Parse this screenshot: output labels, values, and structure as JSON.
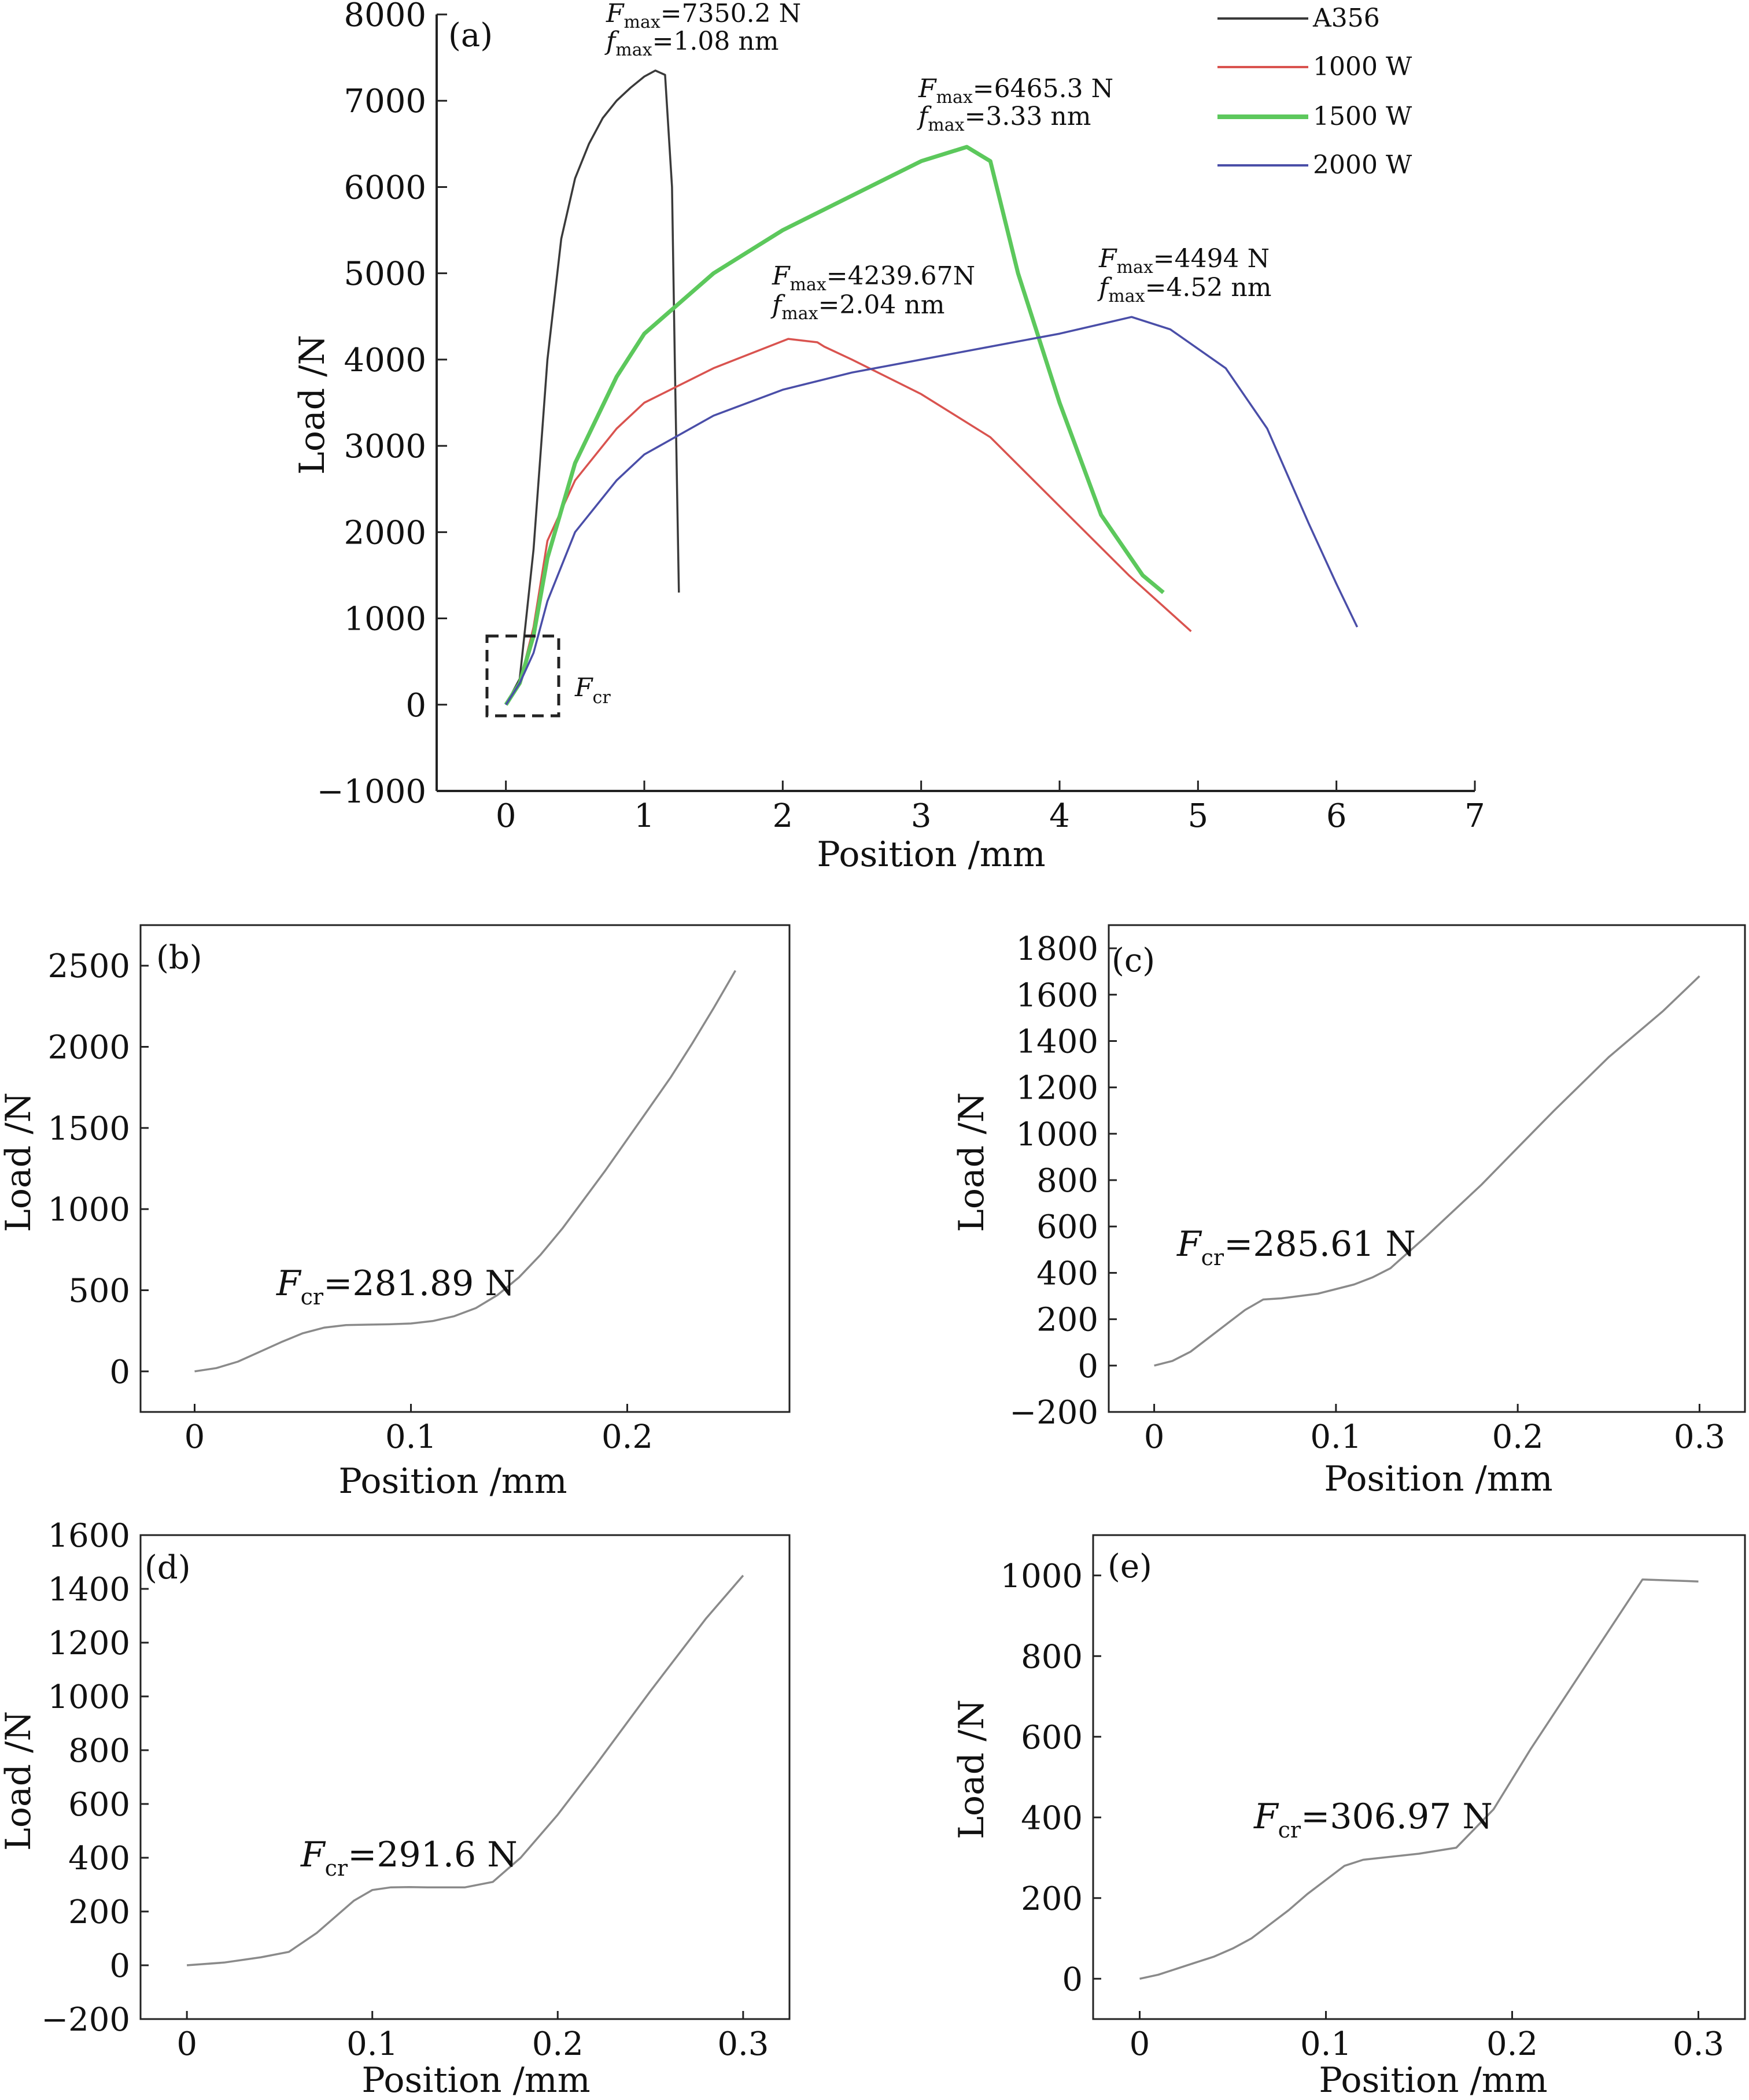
{
  "chart_data": [
    {
      "panel": "(a)",
      "type": "line",
      "xlabel": "Position /mm",
      "ylabel": "Load /N",
      "xlim": [
        -0.5,
        7
      ],
      "ylim": [
        -1000,
        8000
      ],
      "xticks": [
        0,
        1,
        2,
        3,
        4,
        5,
        6,
        7
      ],
      "yticks": [
        -1000,
        0,
        1000,
        2000,
        3000,
        4000,
        5000,
        6000,
        7000,
        8000
      ],
      "tick_labels_x": [
        "0",
        "1",
        "2",
        "3",
        "4",
        "5",
        "6",
        "7"
      ],
      "tick_labels_y": [
        "−1000",
        "0",
        "1000",
        "2000",
        "3000",
        "4000",
        "5000",
        "6000",
        "7000",
        "8000"
      ],
      "legend_position": "top-right",
      "legend": [
        "A356",
        "1000 W",
        "1500 W",
        "2000 W"
      ],
      "series": [
        {
          "name": "A356",
          "color": "#3a3a3a",
          "x": [
            0,
            0.1,
            0.2,
            0.3,
            0.4,
            0.5,
            0.6,
            0.7,
            0.8,
            0.9,
            1.0,
            1.08,
            1.15,
            1.2,
            1.22,
            1.25
          ],
          "y": [
            0,
            300,
            1800,
            4000,
            5400,
            6100,
            6500,
            6800,
            7000,
            7150,
            7280,
            7350,
            7300,
            6000,
            4000,
            1300
          ]
        },
        {
          "name": "1000 W",
          "color": "#d9534f",
          "x": [
            0,
            0.1,
            0.2,
            0.3,
            0.5,
            0.8,
            1.0,
            1.5,
            2.04,
            2.25,
            2.3,
            2.5,
            3.0,
            3.5,
            4.0,
            4.5,
            4.95
          ],
          "y": [
            0,
            250,
            900,
            1900,
            2600,
            3200,
            3500,
            3900,
            4240,
            4200,
            4150,
            4000,
            3600,
            3100,
            2300,
            1500,
            850
          ]
        },
        {
          "name": "1500 W",
          "color": "#5cc85c",
          "x": [
            0,
            0.1,
            0.2,
            0.3,
            0.5,
            0.8,
            1.0,
            1.5,
            2.0,
            2.5,
            3.0,
            3.33,
            3.5,
            3.7,
            4.0,
            4.3,
            4.6,
            4.75
          ],
          "y": [
            0,
            250,
            800,
            1700,
            2800,
            3800,
            4300,
            5000,
            5500,
            5900,
            6300,
            6465,
            6300,
            5000,
            3500,
            2200,
            1500,
            1300
          ]
        },
        {
          "name": "2000 W",
          "color": "#4a4ea8",
          "x": [
            0,
            0.1,
            0.2,
            0.3,
            0.5,
            0.8,
            1.0,
            1.5,
            2.0,
            2.5,
            3.0,
            3.5,
            4.0,
            4.52,
            4.8,
            5.2,
            5.5,
            5.8,
            6.0,
            6.15
          ],
          "y": [
            0,
            250,
            600,
            1200,
            2000,
            2600,
            2900,
            3350,
            3650,
            3850,
            4000,
            4150,
            4300,
            4494,
            4350,
            3900,
            3200,
            2100,
            1400,
            900
          ]
        }
      ],
      "annotations": [
        {
          "text": "=7350.2 N",
          "var": "F",
          "sub": "max"
        },
        {
          "text": "=1.08 nm",
          "var": "f",
          "sub": "max"
        },
        {
          "text": "=6465.3 N",
          "var": "F",
          "sub": "max"
        },
        {
          "text": "=3.33 nm",
          "var": "f",
          "sub": "max"
        },
        {
          "text": "=4239.67N",
          "var": "F",
          "sub": "max"
        },
        {
          "text": "=2.04 nm",
          "var": "f",
          "sub": "max"
        },
        {
          "text": "=4494 N",
          "var": "F",
          "sub": "max"
        },
        {
          "text": "=4.52 nm",
          "var": "f",
          "sub": "max"
        },
        {
          "text": "",
          "var": "F",
          "sub": "cr"
        }
      ]
    },
    {
      "panel": "(b)",
      "type": "line",
      "xlabel": "Position /mm",
      "ylabel": "Load /N",
      "xlim": [
        -0.025,
        0.275
      ],
      "ylim": [
        -250,
        2750
      ],
      "xticks": [
        0,
        0.1,
        0.2
      ],
      "yticks": [
        0,
        500,
        1000,
        1500,
        2000,
        2500
      ],
      "tick_labels_x": [
        "0",
        "0.1",
        "0.2"
      ],
      "tick_labels_y": [
        "0",
        "500",
        "1000",
        "1500",
        "2000",
        "2500"
      ],
      "color": "#8a8a8a",
      "x": [
        0,
        0.01,
        0.02,
        0.03,
        0.04,
        0.05,
        0.06,
        0.07,
        0.08,
        0.09,
        0.1,
        0.11,
        0.12,
        0.13,
        0.14,
        0.15,
        0.16,
        0.17,
        0.18,
        0.19,
        0.2,
        0.21,
        0.22,
        0.23,
        0.24,
        0.25
      ],
      "y": [
        0,
        20,
        60,
        120,
        180,
        235,
        270,
        285,
        288,
        290,
        295,
        310,
        340,
        390,
        470,
        580,
        720,
        880,
        1060,
        1240,
        1430,
        1620,
        1810,
        2020,
        2240,
        2470
      ],
      "annotation": {
        "var": "F",
        "sub": "cr",
        "text": "=281.89 N"
      }
    },
    {
      "panel": "(c)",
      "type": "line",
      "xlabel": "Position /mm",
      "ylabel": "Load /N",
      "xlim": [
        -0.025,
        0.325
      ],
      "ylim": [
        -200,
        1900
      ],
      "xticks": [
        0,
        0.1,
        0.2,
        0.3
      ],
      "yticks": [
        -200,
        0,
        200,
        400,
        600,
        800,
        1000,
        1200,
        1400,
        1600,
        1800
      ],
      "tick_labels_x": [
        "0",
        "0.1",
        "0.2",
        "0.3"
      ],
      "tick_labels_y": [
        "−200",
        "0",
        "200",
        "400",
        "600",
        "800",
        "1000",
        "1200",
        "1400",
        "1600",
        "1800"
      ],
      "color": "#8a8a8a",
      "x": [
        0,
        0.01,
        0.02,
        0.03,
        0.04,
        0.05,
        0.06,
        0.07,
        0.08,
        0.09,
        0.1,
        0.11,
        0.12,
        0.13,
        0.15,
        0.18,
        0.2,
        0.22,
        0.25,
        0.28,
        0.3
      ],
      "y": [
        0,
        20,
        60,
        120,
        180,
        240,
        285,
        290,
        300,
        310,
        330,
        350,
        380,
        420,
        560,
        780,
        940,
        1100,
        1330,
        1530,
        1680
      ],
      "annotation": {
        "var": "F",
        "sub": "cr",
        "text": "=285.61 N"
      }
    },
    {
      "panel": "(d)",
      "type": "line",
      "xlabel": "Position /mm",
      "ylabel": "Load /N",
      "xlim": [
        -0.025,
        0.325
      ],
      "ylim": [
        -200,
        1600
      ],
      "xticks": [
        0,
        0.1,
        0.2,
        0.3
      ],
      "yticks": [
        -200,
        0,
        200,
        400,
        600,
        800,
        1000,
        1200,
        1400,
        1600
      ],
      "tick_labels_x": [
        "0",
        "0.1",
        "0.2",
        "0.3"
      ],
      "tick_labels_y": [
        "−200",
        "0",
        "200",
        "400",
        "600",
        "800",
        "1000",
        "1200",
        "1400",
        "1600"
      ],
      "color": "#8a8a8a",
      "x": [
        0,
        0.02,
        0.04,
        0.055,
        0.07,
        0.08,
        0.09,
        0.1,
        0.11,
        0.12,
        0.13,
        0.15,
        0.165,
        0.18,
        0.2,
        0.22,
        0.25,
        0.28,
        0.3
      ],
      "y": [
        0,
        10,
        30,
        50,
        120,
        180,
        240,
        280,
        290,
        291,
        290,
        290,
        310,
        400,
        560,
        740,
        1020,
        1290,
        1450
      ],
      "annotation": {
        "var": "F",
        "sub": "cr",
        "text": "=291.6 N"
      }
    },
    {
      "panel": "(e)",
      "type": "line",
      "xlabel": "Position /mm",
      "ylabel": "Load /N",
      "xlim": [
        -0.025,
        0.325
      ],
      "ylim": [
        -100,
        1100
      ],
      "xticks": [
        0,
        0.1,
        0.2,
        0.3
      ],
      "yticks": [
        0,
        200,
        400,
        600,
        800,
        1000
      ],
      "tick_labels_x": [
        "0",
        "0.1",
        "0.2",
        "0.3"
      ],
      "tick_labels_y": [
        "0",
        "200",
        "400",
        "600",
        "800",
        "1000"
      ],
      "color": "#8a8a8a",
      "x": [
        0,
        0.01,
        0.02,
        0.03,
        0.04,
        0.05,
        0.06,
        0.07,
        0.08,
        0.09,
        0.1,
        0.11,
        0.12,
        0.13,
        0.15,
        0.17,
        0.19,
        0.21,
        0.24,
        0.27,
        0.3
      ],
      "y": [
        0,
        10,
        25,
        40,
        55,
        75,
        100,
        135,
        170,
        210,
        245,
        280,
        295,
        300,
        310,
        325,
        420,
        570,
        780,
        990,
        985
      ],
      "annotation": {
        "var": "F",
        "sub": "cr",
        "text": "=306.97 N"
      }
    }
  ]
}
